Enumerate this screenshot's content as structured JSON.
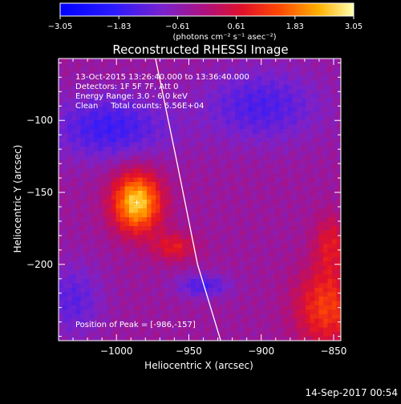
{
  "chart_data": {
    "type": "heatmap",
    "title": "Reconstructed RHESSI Image",
    "xlabel": "Heliocentric X (arcsec)",
    "ylabel": "Heliocentric Y (arcsec)",
    "xlim": [
      -1040,
      -845
    ],
    "ylim": [
      -253,
      -57
    ],
    "x_ticks": [
      -1000,
      -950,
      -900,
      -850
    ],
    "y_ticks": [
      -100,
      -150,
      -200
    ],
    "x_tick_labels": [
      "−1000",
      "−950",
      "−900",
      "−850"
    ],
    "y_tick_labels": [
      "−100",
      "−150",
      "−200"
    ],
    "colorbar": {
      "range": [
        -3.05,
        3.05
      ],
      "tick_values": [
        -3.05,
        -1.83,
        -0.61,
        0.61,
        1.83,
        3.05
      ],
      "tick_labels": [
        "−3.05",
        "−1.83",
        "−0.61",
        "0.61",
        "1.83",
        "3.05"
      ],
      "units_label": "(photons cm⁻² s⁻¹ asec⁻²)"
    },
    "annotations": {
      "line1": "13-Oct-2015 13:26:40.000 to 13:36:40.000",
      "line2": "Detectors: 1F 5F 7F, Att 0",
      "line3": "Energy Range: 3.0 - 6.0 keV",
      "line4": "Clean     Total counts: 6.56E+04",
      "peak": "Position of Peak = [-986,-157]"
    },
    "peak": {
      "x": -986,
      "y": -157
    },
    "limb_points": [
      [
        -973,
        -57
      ],
      [
        -958,
        -130
      ],
      [
        -944,
        -200
      ],
      [
        -928,
        -253
      ]
    ],
    "sources": [
      {
        "x": -986,
        "y": -157,
        "sx": 17,
        "sy": 21,
        "amp": 3.05
      },
      {
        "x": -960,
        "y": -188,
        "sx": 15,
        "sy": 10,
        "amp": 1.2
      },
      {
        "x": -855,
        "y": -230,
        "sx": 22,
        "sy": 28,
        "amp": 1.7
      },
      {
        "x": -852,
        "y": -185,
        "sx": 12,
        "sy": 20,
        "amp": 1.1
      },
      {
        "x": -940,
        "y": -215,
        "sx": 18,
        "sy": 8,
        "amp": -1.1
      },
      {
        "x": -1005,
        "y": -105,
        "sx": 40,
        "sy": 22,
        "amp": -1.3
      },
      {
        "x": -900,
        "y": -90,
        "sx": 40,
        "sy": 25,
        "amp": -1.1
      },
      {
        "x": -1030,
        "y": -225,
        "sx": 20,
        "sy": 25,
        "amp": -0.9
      }
    ],
    "background_level": -0.4,
    "date_stamp": "14-Sep-2017 00:54"
  }
}
